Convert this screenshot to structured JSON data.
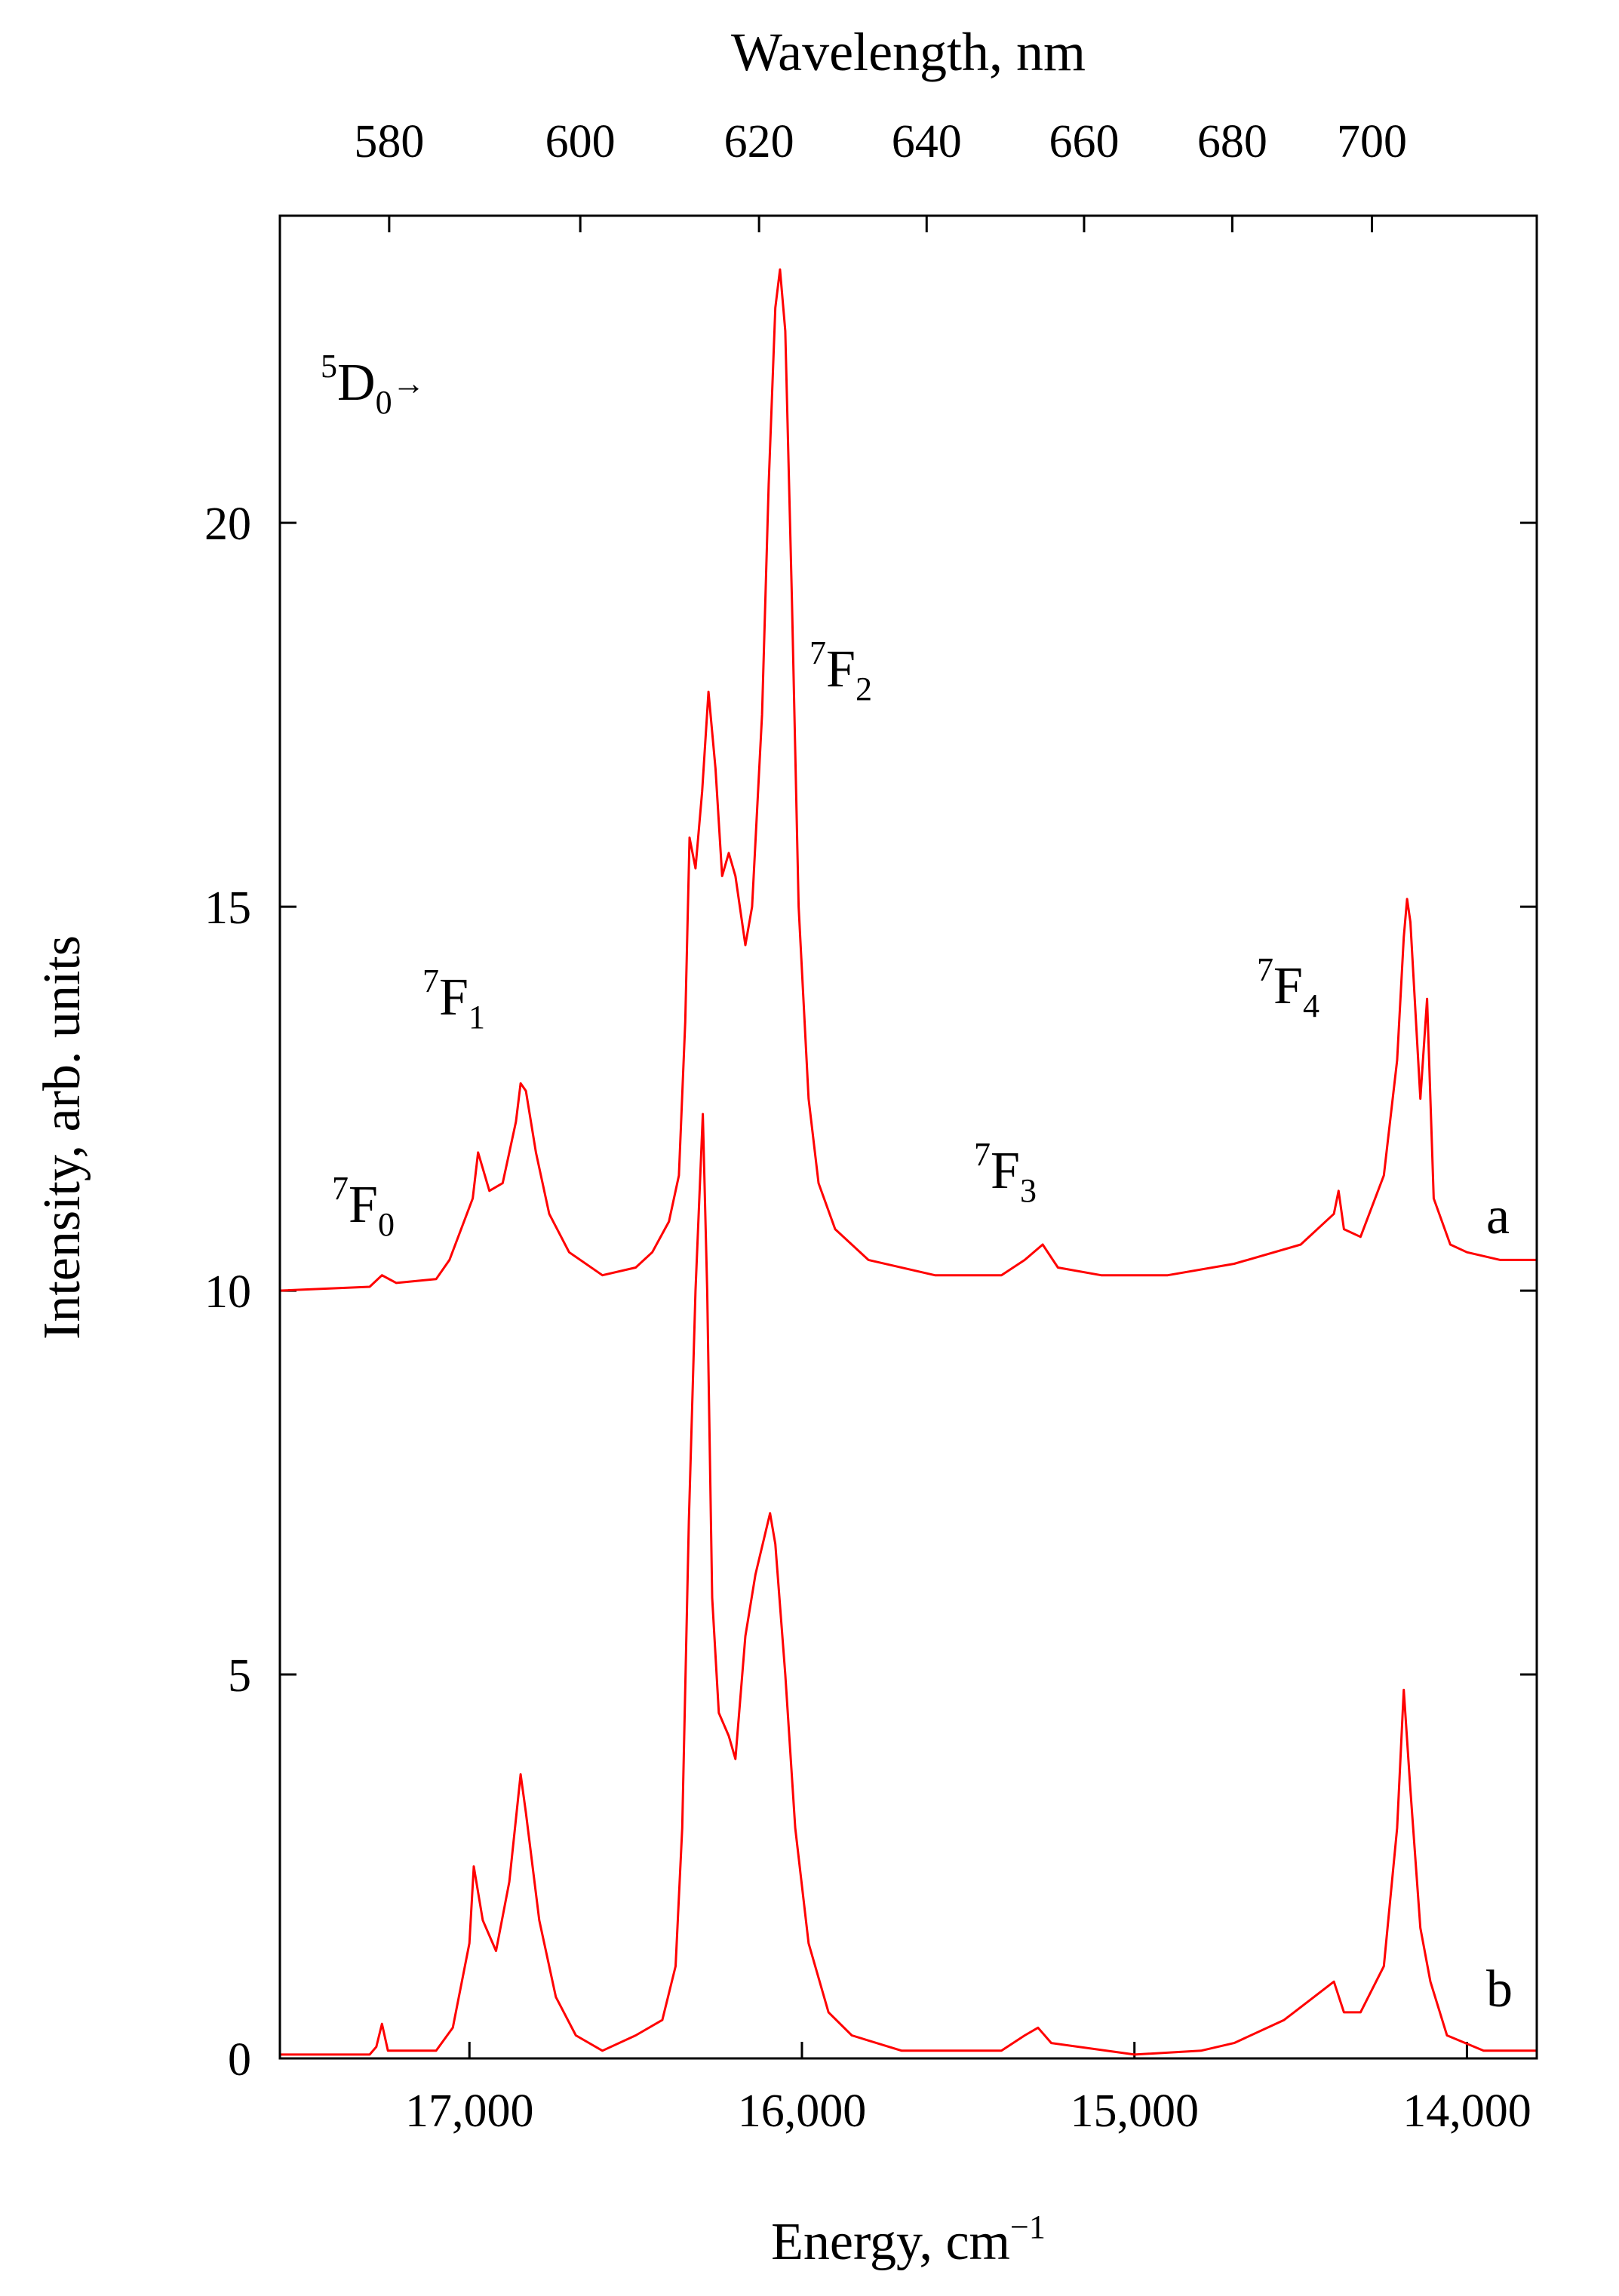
{
  "chart_data": {
    "type": "line",
    "x_label": "Energy, cm",
    "x_label_sup": "−1",
    "y_label": "Intensity, arb. units",
    "x2_label": "Wavelength, nm",
    "xlim": [
      17570,
      13790
    ],
    "xticks": [
      {
        "value": 17000,
        "label": "17,000"
      },
      {
        "value": 16000,
        "label": "16,000"
      },
      {
        "value": 15000,
        "label": "15,000"
      },
      {
        "value": 14000,
        "label": "14,000"
      }
    ],
    "x2lim": [
      569.15,
      725.16
    ],
    "x2scale": "reciprocal",
    "x2ticks": [
      580,
      600,
      620,
      640,
      660,
      680,
      700
    ],
    "ylim": [
      0,
      24
    ],
    "yticks": [
      0,
      5,
      10,
      15,
      20
    ],
    "grid": false,
    "annotations": [
      {
        "sup": "5",
        "base": "D",
        "sub": "0",
        "suffix": "→"
      },
      {
        "sup": "7",
        "base": "F",
        "sub": "0"
      },
      {
        "sup": "7",
        "base": "F",
        "sub": "1"
      },
      {
        "sup": "7",
        "base": "F",
        "sub": "2"
      },
      {
        "sup": "7",
        "base": "F",
        "sub": "3"
      },
      {
        "sup": "7",
        "base": "F",
        "sub": "4"
      }
    ],
    "series": [
      {
        "name": "a",
        "color": "#ff0000",
        "x": [
          17570,
          17300,
          17263,
          17220,
          17100,
          17060,
          16990,
          16974,
          16940,
          16900,
          16860,
          16846,
          16830,
          16800,
          16760,
          16700,
          16600,
          16500,
          16450,
          16400,
          16370,
          16351,
          16338,
          16320,
          16300,
          16281,
          16260,
          16240,
          16220,
          16200,
          16170,
          16150,
          16120,
          16100,
          16080,
          16066,
          16050,
          16030,
          16010,
          15980,
          15950,
          15900,
          15800,
          15600,
          15400,
          15330,
          15276,
          15230,
          15100,
          14900,
          14700,
          14500,
          14400,
          14386,
          14370,
          14320,
          14250,
          14210,
          14190,
          14180,
          14170,
          14140,
          14120,
          14100,
          14050,
          14000,
          13900,
          13790
        ],
        "values": [
          10.0,
          10.05,
          10.2,
          10.1,
          10.15,
          10.4,
          11.2,
          11.8,
          11.3,
          11.4,
          12.2,
          12.7,
          12.6,
          11.8,
          11.0,
          10.5,
          10.2,
          10.3,
          10.5,
          10.9,
          11.5,
          13.5,
          15.9,
          15.5,
          16.5,
          17.8,
          16.8,
          15.4,
          15.7,
          15.4,
          14.5,
          15.0,
          17.5,
          20.5,
          22.8,
          23.3,
          22.5,
          19.0,
          15.0,
          12.5,
          11.4,
          10.8,
          10.4,
          10.2,
          10.2,
          10.4,
          10.6,
          10.3,
          10.2,
          10.2,
          10.35,
          10.6,
          11.0,
          11.3,
          10.8,
          10.7,
          11.5,
          13.0,
          14.6,
          15.1,
          14.8,
          12.5,
          13.8,
          11.2,
          10.6,
          10.5,
          10.4,
          10.4
        ]
      },
      {
        "name": "b",
        "color": "#ff0000",
        "x": [
          17570,
          17300,
          17280,
          17263,
          17245,
          17100,
          17050,
          17000,
          16987,
          16960,
          16920,
          16880,
          16846,
          16830,
          16790,
          16740,
          16680,
          16600,
          16500,
          16420,
          16380,
          16360,
          16340,
          16320,
          16298,
          16285,
          16270,
          16250,
          16220,
          16200,
          16170,
          16140,
          16096,
          16080,
          16050,
          16020,
          15980,
          15920,
          15850,
          15700,
          15400,
          15330,
          15290,
          15250,
          15000,
          14800,
          14700,
          14550,
          14460,
          14400,
          14370,
          14320,
          14250,
          14210,
          14190,
          14170,
          14140,
          14110,
          14060,
          13950,
          13790
        ],
        "values": [
          0.05,
          0.05,
          0.15,
          0.45,
          0.1,
          0.1,
          0.4,
          1.5,
          2.5,
          1.8,
          1.4,
          2.3,
          3.7,
          3.2,
          1.8,
          0.8,
          0.3,
          0.1,
          0.3,
          0.5,
          1.2,
          3.0,
          7.0,
          10.0,
          12.3,
          10.0,
          6.0,
          4.5,
          4.2,
          3.9,
          5.5,
          6.3,
          7.1,
          6.7,
          5.0,
          3.0,
          1.5,
          0.6,
          0.3,
          0.1,
          0.1,
          0.3,
          0.4,
          0.2,
          0.05,
          0.1,
          0.2,
          0.5,
          0.8,
          1.0,
          0.6,
          0.6,
          1.2,
          3.0,
          4.8,
          3.5,
          1.7,
          1.0,
          0.3,
          0.1,
          0.1
        ]
      }
    ]
  }
}
